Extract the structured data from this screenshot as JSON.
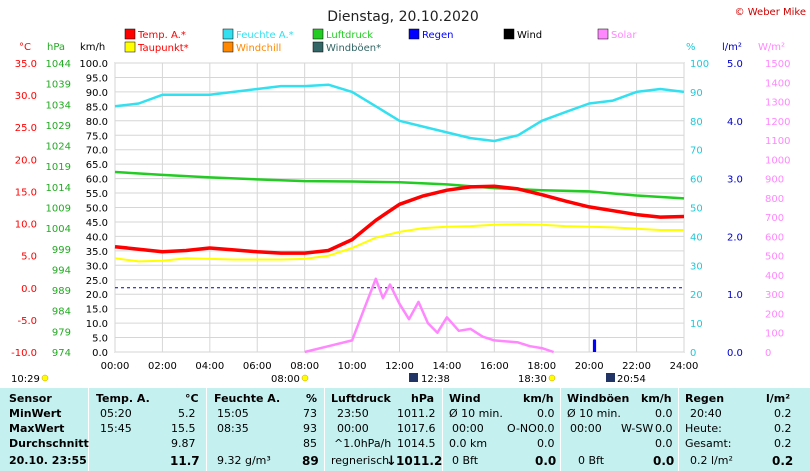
{
  "title": "Dienstag, 20.10.2020",
  "copyright": "© Weber Mike",
  "legend": [
    {
      "label": "Temp. A.*",
      "color": "#ff0000"
    },
    {
      "label": "Feuchte A.*",
      "color": "#33e0f0"
    },
    {
      "label": "Luftdruck",
      "color": "#22cc22"
    },
    {
      "label": "Regen",
      "color": "#0000ff"
    },
    {
      "label": "Wind",
      "color": "#000000"
    },
    {
      "label": "Solar",
      "color": "#ff88ff"
    },
    {
      "label": "Taupunkt*",
      "color": "#ffff00"
    },
    {
      "label": "Windchill",
      "color": "#ff8800"
    },
    {
      "label": "Windböen*",
      "color": "#336666"
    }
  ],
  "axis_units": {
    "temp": "°C",
    "pressure": "hPa",
    "wind": "km/h",
    "humidity": "%",
    "rain": "l/m²",
    "solar": "W/m²"
  },
  "markers": {
    "sunrise_left": "10:29",
    "moonrise": "08:00",
    "moon": "12:38",
    "sunset": "18:30",
    "moonset": "20:54"
  },
  "chart_data": {
    "type": "line",
    "x_ticks": [
      "00:00",
      "02:00",
      "04:00",
      "06:00",
      "08:00",
      "10:00",
      "12:00",
      "14:00",
      "16:00",
      "18:00",
      "20:00",
      "22:00",
      "24:00"
    ],
    "y_axes": {
      "temp": {
        "unit": "°C",
        "range": [
          -10,
          35
        ],
        "ticks": [
          "35.0",
          "30.0",
          "25.0",
          "20.0",
          "15.0",
          "10.0",
          "5.0",
          "0.0",
          "-5.0",
          "-10.0"
        ]
      },
      "pressure": {
        "unit": "hPa",
        "range": [
          974,
          1044
        ],
        "ticks": [
          "1044",
          "1039",
          "1034",
          "1029",
          "1024",
          "1019",
          "1014",
          "1009",
          "1004",
          "999",
          "994",
          "989",
          "984",
          "979",
          "974"
        ]
      },
      "wind": {
        "unit": "km/h",
        "range": [
          0,
          100
        ],
        "ticks": [
          "100.0",
          "95.0",
          "90.0",
          "85.0",
          "80.0",
          "75.0",
          "70.0",
          "65.0",
          "60.0",
          "55.0",
          "50.0",
          "45.0",
          "40.0",
          "35.0",
          "30.0",
          "25.0",
          "20.0",
          "15.0",
          "10.0",
          "5.0",
          "0.0"
        ]
      },
      "humidity": {
        "unit": "%",
        "range": [
          0,
          100
        ],
        "ticks": [
          "100",
          "90",
          "80",
          "70",
          "60",
          "50",
          "40",
          "30",
          "20",
          "10",
          "0"
        ]
      },
      "rain": {
        "unit": "l/m²",
        "range": [
          0,
          5
        ],
        "ticks": [
          "5.0",
          "4.0",
          "3.0",
          "2.0",
          "1.0",
          "0.0"
        ]
      },
      "solar": {
        "unit": "W/m²",
        "range": [
          0,
          1500
        ],
        "ticks": [
          "1500",
          "1400",
          "1300",
          "1200",
          "1100",
          "1000",
          "900",
          "800",
          "700",
          "600",
          "500",
          "400",
          "300",
          "200",
          "100",
          "0"
        ]
      }
    },
    "grid": true,
    "series": [
      {
        "name": "Temp. A.*",
        "axis": "temp",
        "color": "#ff0000",
        "points": [
          [
            0,
            6.4
          ],
          [
            1,
            6.0
          ],
          [
            2,
            5.6
          ],
          [
            3,
            5.8
          ],
          [
            4,
            6.2
          ],
          [
            5,
            5.9
          ],
          [
            6,
            5.6
          ],
          [
            7,
            5.4
          ],
          [
            8,
            5.4
          ],
          [
            9,
            5.8
          ],
          [
            10,
            7.5
          ],
          [
            11,
            10.5
          ],
          [
            12,
            13.0
          ],
          [
            13,
            14.3
          ],
          [
            14,
            15.2
          ],
          [
            15,
            15.7
          ],
          [
            16,
            15.8
          ],
          [
            17,
            15.4
          ],
          [
            18,
            14.5
          ],
          [
            19,
            13.5
          ],
          [
            20,
            12.6
          ],
          [
            21,
            12.0
          ],
          [
            22,
            11.4
          ],
          [
            23,
            11.0
          ],
          [
            24,
            11.1
          ]
        ]
      },
      {
        "name": "Taupunkt*",
        "axis": "temp",
        "color": "#ffff00",
        "points": [
          [
            0,
            4.6
          ],
          [
            1,
            4.1
          ],
          [
            2,
            4.2
          ],
          [
            3,
            4.6
          ],
          [
            4,
            4.5
          ],
          [
            5,
            4.4
          ],
          [
            6,
            4.4
          ],
          [
            7,
            4.4
          ],
          [
            8,
            4.5
          ],
          [
            9,
            5.0
          ],
          [
            10,
            6.2
          ],
          [
            11,
            7.8
          ],
          [
            12,
            8.7
          ],
          [
            13,
            9.3
          ],
          [
            14,
            9.5
          ],
          [
            15,
            9.6
          ],
          [
            16,
            9.8
          ],
          [
            17,
            9.9
          ],
          [
            18,
            9.8
          ],
          [
            19,
            9.6
          ],
          [
            20,
            9.5
          ],
          [
            21,
            9.4
          ],
          [
            22,
            9.2
          ],
          [
            23,
            9.0
          ],
          [
            24,
            9.0
          ]
        ]
      },
      {
        "name": "Feuchte A.*",
        "axis": "humidity",
        "color": "#33e0f0",
        "points": [
          [
            0,
            85
          ],
          [
            1,
            86
          ],
          [
            2,
            89
          ],
          [
            3,
            89
          ],
          [
            4,
            89
          ],
          [
            5,
            90
          ],
          [
            6,
            91
          ],
          [
            7,
            92
          ],
          [
            8,
            92
          ],
          [
            9,
            92.5
          ],
          [
            10,
            90
          ],
          [
            11,
            85
          ],
          [
            12,
            80
          ],
          [
            13,
            78
          ],
          [
            14,
            76
          ],
          [
            15,
            74
          ],
          [
            16,
            73
          ],
          [
            17,
            75
          ],
          [
            18,
            80
          ],
          [
            19,
            83
          ],
          [
            20,
            86
          ],
          [
            21,
            87
          ],
          [
            22,
            90
          ],
          [
            23,
            91
          ],
          [
            24,
            90
          ]
        ]
      },
      {
        "name": "Luftdruck",
        "axis": "pressure",
        "color": "#22cc22",
        "points": [
          [
            0,
            1017.6
          ],
          [
            2,
            1016.9
          ],
          [
            4,
            1016.3
          ],
          [
            6,
            1015.8
          ],
          [
            8,
            1015.4
          ],
          [
            10,
            1015.3
          ],
          [
            12,
            1015.1
          ],
          [
            14,
            1014.6
          ],
          [
            16,
            1013.7
          ],
          [
            18,
            1013.2
          ],
          [
            20,
            1012.9
          ],
          [
            22,
            1011.9
          ],
          [
            24,
            1011.2
          ]
        ]
      },
      {
        "name": "Solar",
        "axis": "solar",
        "color": "#ff88ff",
        "points": [
          [
            8,
            0
          ],
          [
            9,
            30
          ],
          [
            10,
            60
          ],
          [
            10.5,
            220
          ],
          [
            11,
            380
          ],
          [
            11.3,
            280
          ],
          [
            11.6,
            350
          ],
          [
            12,
            250
          ],
          [
            12.4,
            170
          ],
          [
            12.8,
            260
          ],
          [
            13.2,
            150
          ],
          [
            13.6,
            100
          ],
          [
            14,
            180
          ],
          [
            14.5,
            110
          ],
          [
            15,
            120
          ],
          [
            15.5,
            80
          ],
          [
            16,
            60
          ],
          [
            17,
            50
          ],
          [
            17.5,
            30
          ],
          [
            18,
            20
          ],
          [
            18.5,
            0
          ]
        ]
      },
      {
        "name": "Regen",
        "axis": "rain",
        "color": "#0000ff",
        "points": [
          [
            20.2,
            0
          ],
          [
            20.2,
            0.2
          ],
          [
            20.25,
            0.2
          ],
          [
            20.25,
            0
          ]
        ]
      }
    ]
  },
  "table": {
    "headers": {
      "sensor": "Sensor",
      "temp": "Temp. A.",
      "temp_unit": "°C",
      "hum": "Feuchte A.",
      "hum_unit": "%",
      "press": "Luftdruck",
      "press_unit": "hPa",
      "wind": "Wind",
      "wind_unit": "km/h",
      "gust": "Windböen",
      "gust_unit": "km/h",
      "rain": "Regen",
      "rain_unit": "l/m²"
    },
    "min": {
      "label": "MinWert",
      "t_time": "05:20",
      "t_val": "5.2",
      "h_time": "15:05",
      "h_val": "73",
      "p_time": "23:50",
      "p_val": "1011.2",
      "w_desc": "Ø 10 min.",
      "w_val": "0.0",
      "g_desc": "Ø 10 min.",
      "g_val": "0.0",
      "r_time": "20:40",
      "r_val": "0.2"
    },
    "max": {
      "label": "MaxWert",
      "t_time": "15:45",
      "t_val": "15.5",
      "h_time": "08:35",
      "h_val": "93",
      "p_time": "00:00",
      "p_val": "1017.6",
      "w_time": "00:00",
      "w_dir": "O-NO",
      "w_val": "0.0",
      "g_time": "00:00",
      "g_dir": "W-SW",
      "g_val": "0.0",
      "r_label": "Heute:",
      "r_val": "0.2"
    },
    "avg": {
      "label": "Durchschnitt",
      "t_val": "9.87",
      "h_val": "85",
      "p_desc": "^1.0hPa/h",
      "p_val": "1014.5",
      "w_desc": "0.0 km",
      "w_val": "0.0",
      "g_val": "0.0",
      "r_label": "Gesamt:",
      "r_val": "0.2"
    },
    "cur": {
      "label": "20.10. 23:55",
      "t_val": "11.7",
      "h_desc": "9.32 g/m³",
      "h_val": "89",
      "p_desc": "regnerisch",
      "p_val": "1011.2",
      "w_desc": "0 Bft",
      "w_val": "0.0",
      "g_desc": "0 Bft",
      "g_val": "0.0",
      "r_desc": "0.2 l/m²",
      "r_val": "0.2"
    }
  }
}
